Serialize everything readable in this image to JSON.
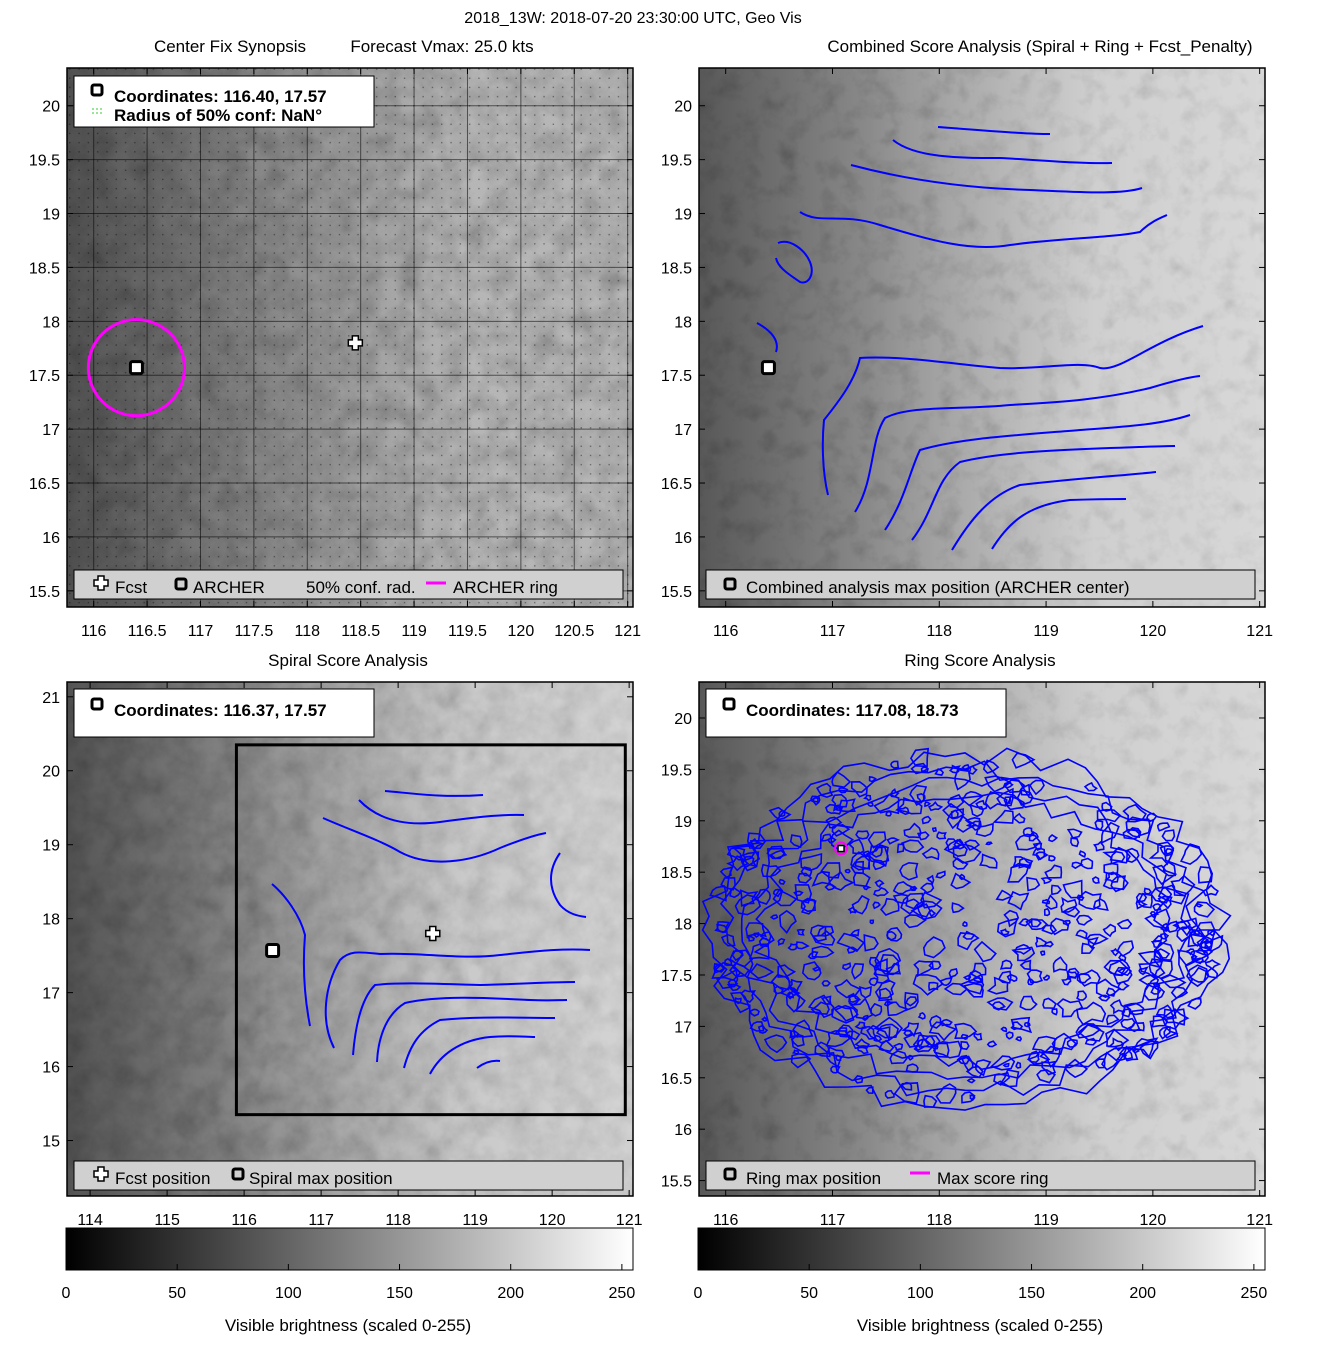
{
  "figure": {
    "suptitle": "2018_13W: 2018-07-20 23:30:00 UTC, Geo Vis"
  },
  "panels": {
    "synopsis": {
      "title_left": "Center Fix Synopsis",
      "title_right": "Forecast Vmax: 25.0 kts",
      "info_coords": "Coordinates: 116.40, 17.57",
      "info_radius": "Radius of 50% conf: NaN°",
      "legend": {
        "fcst": "Fcst",
        "archer": "ARCHER",
        "conf": "50% conf. rad.",
        "ring": "ARCHER ring"
      }
    },
    "combined": {
      "title": "Combined Score Analysis (Spiral + Ring + Fcst_Penalty)",
      "legend": {
        "max": "Combined analysis max position (ARCHER center)"
      }
    },
    "spiral": {
      "title": "Spiral Score Analysis",
      "info_coords": "Coordinates: 116.37, 17.57",
      "legend": {
        "fcst": "Fcst position",
        "max": "Spiral max position"
      }
    },
    "ring": {
      "title": "Ring Score Analysis",
      "info_coords": "Coordinates: 117.08, 18.73",
      "legend": {
        "max": "Ring max position",
        "ring": "Max score ring"
      }
    }
  },
  "colorbars": {
    "label": "Visible brightness (scaled 0-255)",
    "ticks": [
      "0",
      "50",
      "100",
      "150",
      "200",
      "250"
    ]
  },
  "colors": {
    "contour": "#0000ff",
    "ring": "#ff00ff",
    "conf": "#33cc33",
    "legend_bg": "#d0d0d0"
  },
  "chart_data": [
    {
      "type": "heatmap",
      "name_ref": "Center Fix Synopsis",
      "xlim": [
        115.75,
        121.05
      ],
      "ylim": [
        15.35,
        20.35
      ],
      "xticks": [
        116,
        116.5,
        117,
        117.5,
        118,
        118.5,
        119,
        119.5,
        120,
        120.5,
        121
      ],
      "yticks": [
        15.5,
        16,
        16.5,
        17,
        17.5,
        18,
        18.5,
        19,
        19.5,
        20
      ],
      "archer_center": [
        116.4,
        17.57
      ],
      "forecast_position": [
        118.45,
        17.8
      ],
      "archer_ring_radius_deg": 0.45
    },
    {
      "type": "heatmap",
      "name_ref": "Combined Score Analysis (Spiral + Ring + Fcst_Penalty)",
      "xlim": [
        115.75,
        121.05
      ],
      "ylim": [
        15.35,
        20.35
      ],
      "xticks": [
        116,
        117,
        118,
        119,
        120,
        121
      ],
      "yticks": [
        15.5,
        16,
        16.5,
        17,
        17.5,
        18,
        18.5,
        19,
        19.5,
        20
      ],
      "max_position": [
        116.4,
        17.57
      ]
    },
    {
      "type": "heatmap",
      "name_ref": "Spiral Score Analysis",
      "xlim": [
        113.7,
        121.05
      ],
      "ylim": [
        14.25,
        21.2
      ],
      "xticks": [
        114,
        115,
        116,
        117,
        118,
        119,
        120,
        121
      ],
      "yticks": [
        15,
        16,
        17,
        18,
        19,
        20,
        21
      ],
      "max_position": [
        116.37,
        17.57
      ],
      "forecast_position": [
        118.45,
        17.8
      ],
      "search_box": {
        "lon": [
          115.9,
          120.95
        ],
        "lat": [
          15.35,
          20.35
        ]
      }
    },
    {
      "type": "heatmap",
      "name_ref": "Ring Score Analysis",
      "xlim": [
        115.75,
        121.05
      ],
      "ylim": [
        15.35,
        20.35
      ],
      "xticks": [
        116,
        117,
        118,
        119,
        120,
        121
      ],
      "yticks": [
        15.5,
        16,
        16.5,
        17,
        17.5,
        18,
        18.5,
        19,
        19.5,
        20
      ],
      "max_position": [
        117.08,
        18.73
      ]
    }
  ]
}
